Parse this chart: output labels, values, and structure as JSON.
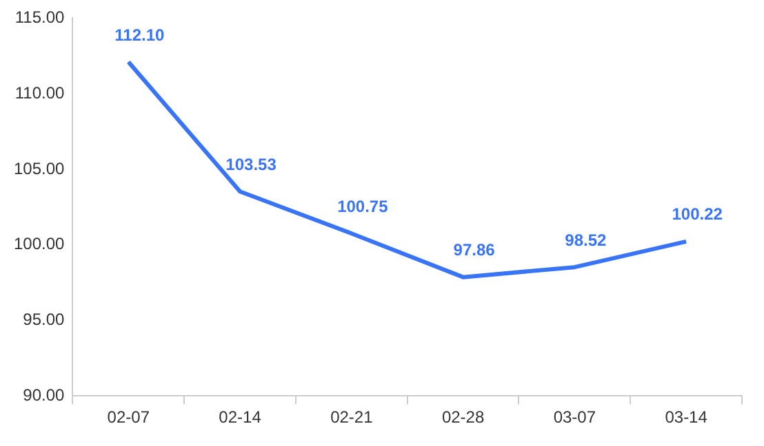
{
  "chart_data": {
    "type": "line",
    "categories": [
      "02-07",
      "02-14",
      "02-21",
      "02-28",
      "03-07",
      "03-14"
    ],
    "series": [
      {
        "color": "#3a74f6",
        "values": [
          112.1,
          103.53,
          100.75,
          97.86,
          98.52,
          100.22
        ]
      }
    ],
    "ylim": [
      90,
      115
    ],
    "yticks": [
      {
        "value": 90,
        "label": "90.00"
      },
      {
        "value": 95,
        "label": "95.00"
      },
      {
        "value": 100,
        "label": "100.00"
      },
      {
        "value": 105,
        "label": "105.00"
      },
      {
        "value": 110,
        "label": "110.00"
      },
      {
        "value": 115,
        "label": "115.00"
      }
    ],
    "value_labels": [
      "112.10",
      "103.53",
      "100.75",
      "97.86",
      "98.52",
      "100.22"
    ],
    "grid": false,
    "legend": false,
    "marker": "none",
    "line_style": "solid"
  }
}
